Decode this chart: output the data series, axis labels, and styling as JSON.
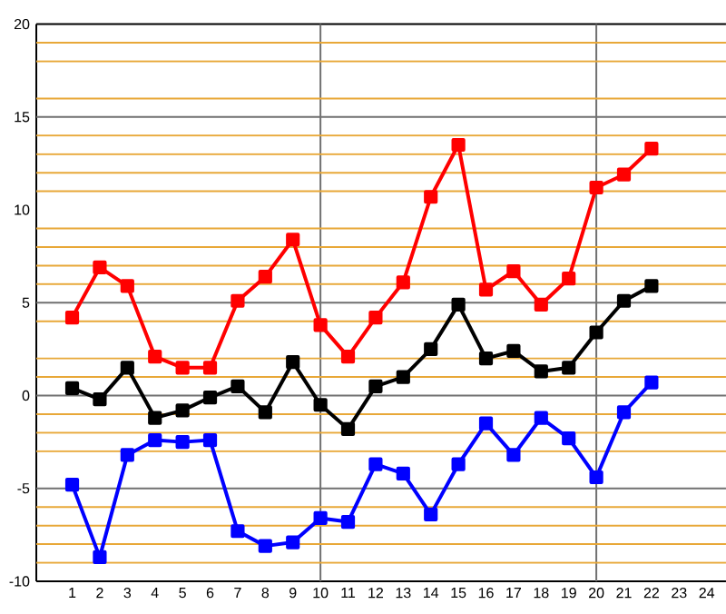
{
  "chart_data": {
    "type": "line",
    "x": [
      1,
      2,
      3,
      4,
      5,
      6,
      7,
      8,
      9,
      10,
      11,
      12,
      13,
      14,
      15,
      16,
      17,
      18,
      19,
      20,
      21,
      22
    ],
    "series": [
      {
        "color": "#ff0000",
        "values": [
          4.2,
          6.9,
          5.9,
          2.1,
          1.5,
          1.5,
          5.1,
          6.4,
          8.4,
          3.8,
          2.1,
          4.2,
          6.1,
          10.7,
          13.5,
          5.7,
          6.7,
          4.9,
          6.3,
          11.2,
          11.9,
          13.3
        ]
      },
      {
        "color": "#000000",
        "values": [
          0.4,
          -0.2,
          1.5,
          -1.2,
          -0.8,
          -0.1,
          0.5,
          -0.9,
          1.8,
          -0.5,
          -1.8,
          0.5,
          1.0,
          2.5,
          4.9,
          2.0,
          2.4,
          1.3,
          1.5,
          3.4,
          5.1,
          5.9
        ]
      },
      {
        "color": "#0000ff",
        "values": [
          -4.8,
          -8.7,
          -3.2,
          -2.4,
          -2.5,
          -2.4,
          -7.3,
          -8.1,
          -7.9,
          -6.6,
          -6.8,
          -3.7,
          -4.2,
          -6.4,
          -3.7,
          -1.5,
          -3.2,
          -1.2,
          -2.3,
          -4.4,
          -0.9,
          0.7
        ]
      }
    ],
    "xlim": [
      -0.3,
      24.7
    ],
    "xticks": [
      1,
      2,
      3,
      4,
      5,
      6,
      7,
      8,
      9,
      10,
      11,
      12,
      13,
      14,
      15,
      16,
      17,
      18,
      19,
      20,
      21,
      22,
      23,
      24
    ],
    "ylim": [
      -10,
      20
    ],
    "yticks": [
      -10,
      -5,
      0,
      5,
      10,
      15,
      20
    ],
    "marker": "square",
    "line_style": "solid",
    "grid": false,
    "ref_lines": [
      {
        "axis": "x",
        "value": 10,
        "color": "#707070"
      },
      {
        "axis": "x",
        "value": 20,
        "color": "#707070"
      },
      {
        "axis": "y",
        "value": 19,
        "color": "#e8a838"
      },
      {
        "axis": "y",
        "value": 18,
        "color": "#e8a838"
      },
      {
        "axis": "y",
        "value": 16,
        "color": "#e8a838"
      },
      {
        "axis": "y",
        "value": 14,
        "color": "#e8a838"
      },
      {
        "axis": "y",
        "value": 13,
        "color": "#e8a838"
      },
      {
        "axis": "y",
        "value": 12,
        "color": "#e8a838"
      },
      {
        "axis": "y",
        "value": 11,
        "color": "#e8a838"
      },
      {
        "axis": "y",
        "value": 9,
        "color": "#e8a838"
      },
      {
        "axis": "y",
        "value": 8,
        "color": "#e8a838"
      },
      {
        "axis": "y",
        "value": 7,
        "color": "#e8a838"
      },
      {
        "axis": "y",
        "value": 6,
        "color": "#e8a838"
      },
      {
        "axis": "y",
        "value": 4,
        "color": "#e8a838"
      },
      {
        "axis": "y",
        "value": 2,
        "color": "#e8a838"
      },
      {
        "axis": "y",
        "value": 1,
        "color": "#e8a838"
      },
      {
        "axis": "y",
        "value": -1,
        "color": "#e8a838"
      },
      {
        "axis": "y",
        "value": -2,
        "color": "#e8a838"
      },
      {
        "axis": "y",
        "value": -3,
        "color": "#e8a838"
      },
      {
        "axis": "y",
        "value": -6,
        "color": "#e8a838"
      },
      {
        "axis": "y",
        "value": -7,
        "color": "#e8a838"
      },
      {
        "axis": "y",
        "value": -8,
        "color": "#e8a838"
      },
      {
        "axis": "y",
        "value": -9,
        "color": "#e8a838"
      },
      {
        "axis": "y",
        "value": 15,
        "color": "#707070"
      },
      {
        "axis": "y",
        "value": 5,
        "color": "#707070"
      },
      {
        "axis": "y",
        "value": 0,
        "color": "#707070"
      },
      {
        "axis": "y",
        "value": -5,
        "color": "#707070"
      }
    ]
  }
}
